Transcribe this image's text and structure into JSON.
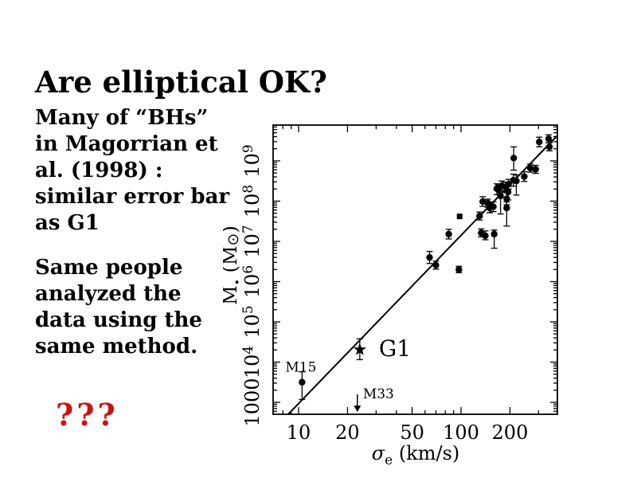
{
  "slide": {
    "title": "Are elliptical OK?",
    "paragraph1": "Many of “BHs”\nin Magorrian et\nal. (1998) :\nsimilar error bar\nas G1",
    "paragraph2": "Same people\nanalyzed the\ndata using the\nsame method.",
    "question_marks": "???",
    "accent_color": "#cc1111"
  },
  "chart_data": {
    "type": "scatter",
    "title": "",
    "xlabel": "sigma_e (km/s)",
    "ylabel": "M_bullet (M_sun)",
    "x_scale": "log",
    "y_scale": "log",
    "xlim_log": [
      0.843,
      2.593
    ],
    "ylim_log": [
      2.703,
      9.89
    ],
    "grid": false,
    "x_ticks_major": [
      10,
      20,
      50,
      100,
      200
    ],
    "x_ticks_minor": [
      8,
      9,
      30,
      40,
      60,
      70,
      80,
      90,
      300
    ],
    "y_ticks_major": [
      {
        "log": 3,
        "label": "1000"
      },
      {
        "log": 4,
        "label": "10^4"
      },
      {
        "log": 5,
        "label": "10^5"
      },
      {
        "log": 6,
        "label": "10^6"
      },
      {
        "log": 7,
        "label": "10^7"
      },
      {
        "log": 8,
        "label": "10^8"
      },
      {
        "log": 9,
        "label": "10^9"
      }
    ],
    "fit_line": {
      "sigma": [
        8.63,
        392
      ],
      "logM": [
        2.703,
        9.63
      ],
      "slope_dex_per_dex": 4.2
    },
    "points": [
      {
        "sigma": 64,
        "logM": 6.6,
        "errLo": 0.15,
        "errHi": 0.15,
        "marker": "circle"
      },
      {
        "sigma": 70,
        "logM": 6.41,
        "errLo": 0.1,
        "errHi": 0.1,
        "marker": "circle"
      },
      {
        "sigma": 97,
        "logM": 6.3,
        "errLo": 0.08,
        "errHi": 0.08,
        "marker": "circle"
      },
      {
        "sigma": 84,
        "logM": 7.18,
        "errLo": 0.12,
        "errHi": 0.12,
        "marker": "circle"
      },
      {
        "sigma": 98,
        "logM": 7.62,
        "errLo": 0,
        "errHi": 0,
        "marker": "square"
      },
      {
        "sigma": 130,
        "logM": 7.63,
        "errLo": 0.1,
        "errHi": 0.1,
        "marker": "circle"
      },
      {
        "sigma": 133,
        "logM": 7.21,
        "errLo": 0.1,
        "errHi": 0.1,
        "marker": "circle"
      },
      {
        "sigma": 141,
        "logM": 7.14,
        "errLo": 0.1,
        "errHi": 0.12,
        "marker": "circle"
      },
      {
        "sigma": 160,
        "logM": 7.18,
        "errLo": 0.35,
        "errHi": 0.1,
        "marker": "circle"
      },
      {
        "sigma": 136,
        "logM": 7.99,
        "errLo": 0.12,
        "errHi": 0.12,
        "marker": "circle"
      },
      {
        "sigma": 146,
        "logM": 7.95,
        "errLo": 0.1,
        "errHi": 0.1,
        "marker": "circle"
      },
      {
        "sigma": 150,
        "logM": 7.83,
        "errLo": 0.12,
        "errHi": 0.12,
        "marker": "circle"
      },
      {
        "sigma": 158,
        "logM": 7.86,
        "errLo": 0.12,
        "errHi": 0.12,
        "marker": "circle"
      },
      {
        "sigma": 166,
        "logM": 8.31,
        "errLo": 0.15,
        "errHi": 0.12,
        "marker": "circle"
      },
      {
        "sigma": 175,
        "logM": 8.13,
        "errLo": 0.45,
        "errHi": 0.12,
        "marker": "circle"
      },
      {
        "sigma": 188,
        "logM": 8.35,
        "errLo": 0.12,
        "errHi": 0.12,
        "marker": "circle"
      },
      {
        "sigma": 191,
        "logM": 7.83,
        "errLo": 0.45,
        "errHi": 0.15,
        "marker": "circle"
      },
      {
        "sigma": 170,
        "logM": 8.28,
        "errLo": 0.12,
        "errHi": 0.12,
        "marker": "circle"
      },
      {
        "sigma": 178,
        "logM": 8.38,
        "errLo": 0.12,
        "errHi": 0.12,
        "marker": "circle"
      },
      {
        "sigma": 196,
        "logM": 8.42,
        "errLo": 0.12,
        "errHi": 0.12,
        "marker": "circle"
      },
      {
        "sigma": 195,
        "logM": 8.23,
        "errLo": 0.2,
        "errHi": 0.2,
        "marker": "circle"
      },
      {
        "sigma": 191,
        "logM": 8.06,
        "errLo": 0.15,
        "errHi": 0.15,
        "marker": "circle"
      },
      {
        "sigma": 211,
        "logM": 9.07,
        "errLo": 0.3,
        "errHi": 0.28,
        "marker": "circle"
      },
      {
        "sigma": 210,
        "logM": 8.52,
        "errLo": 0.15,
        "errHi": 0.15,
        "marker": "circle"
      },
      {
        "sigma": 219,
        "logM": 8.5,
        "errLo": 0.35,
        "errHi": 0.15,
        "marker": "circle"
      },
      {
        "sigma": 245,
        "logM": 8.61,
        "errLo": 0.12,
        "errHi": 0.12,
        "marker": "circle"
      },
      {
        "sigma": 267,
        "logM": 8.82,
        "errLo": 0.1,
        "errHi": 0.1,
        "marker": "circle"
      },
      {
        "sigma": 288,
        "logM": 8.79,
        "errLo": 0.1,
        "errHi": 0.1,
        "marker": "circle"
      },
      {
        "sigma": 303,
        "logM": 9.47,
        "errLo": 0.12,
        "errHi": 0.12,
        "marker": "circle"
      },
      {
        "sigma": 346,
        "logM": 9.55,
        "errLo": 0.1,
        "errHi": 0.1,
        "marker": "circle"
      },
      {
        "sigma": 350,
        "logM": 9.35,
        "errLo": 0.1,
        "errHi": 0.1,
        "marker": "circle"
      }
    ],
    "labeled_points": [
      {
        "name": "M15",
        "sigma": 10.5,
        "logM": 3.5,
        "errLo": 0.43,
        "errHi": 0.26,
        "marker": "circle"
      },
      {
        "name": "G1",
        "sigma": 23.8,
        "logM": 4.31,
        "errLo": 0.25,
        "errHi": 0.27,
        "marker": "star"
      },
      {
        "name": "M33",
        "sigma": 23.0,
        "logM_upper_limit": 3.2,
        "arrow_dex": 0.44,
        "marker": "upper-limit-arrow"
      }
    ]
  }
}
